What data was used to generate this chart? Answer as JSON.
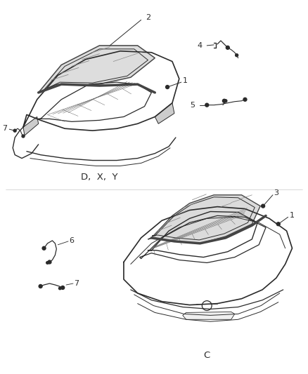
{
  "bg_color": "#ffffff",
  "line_color": "#2a2a2a",
  "label_color": "#1a1a1a",
  "label_DXY": "D,  X,  Y",
  "label_C": "C",
  "fig_width": 4.38,
  "fig_height": 5.33,
  "dpi": 100
}
